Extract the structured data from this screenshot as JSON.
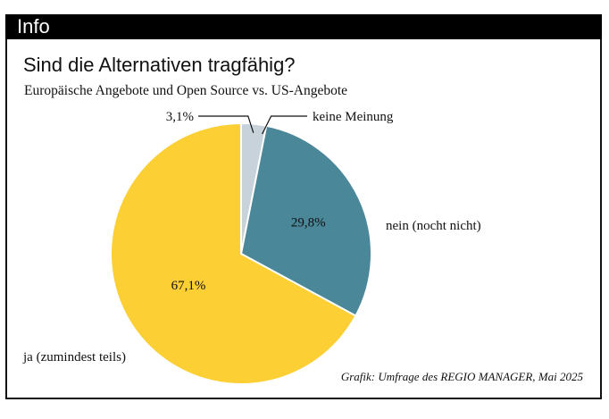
{
  "header": {
    "label": "Info"
  },
  "chart_data": {
    "type": "pie",
    "title": "Sind die Alternativen tragfähig?",
    "subtitle": "Europäische Angebote und Open Source vs. US-Angebote",
    "source": "Grafik: Umfrage des REGIO MANAGER, Mai 2025",
    "slices": [
      {
        "label": "keine Meinung",
        "value": 3.1,
        "value_label": "3,1%",
        "color": "#c7d2da"
      },
      {
        "label": "nein (nocht nicht)",
        "value": 29.8,
        "value_label": "29,8%",
        "color": "#4a8798"
      },
      {
        "label": "ja (zumindest teils)",
        "value": 67.1,
        "value_label": "67,1%",
        "color": "#fccf35"
      }
    ]
  }
}
